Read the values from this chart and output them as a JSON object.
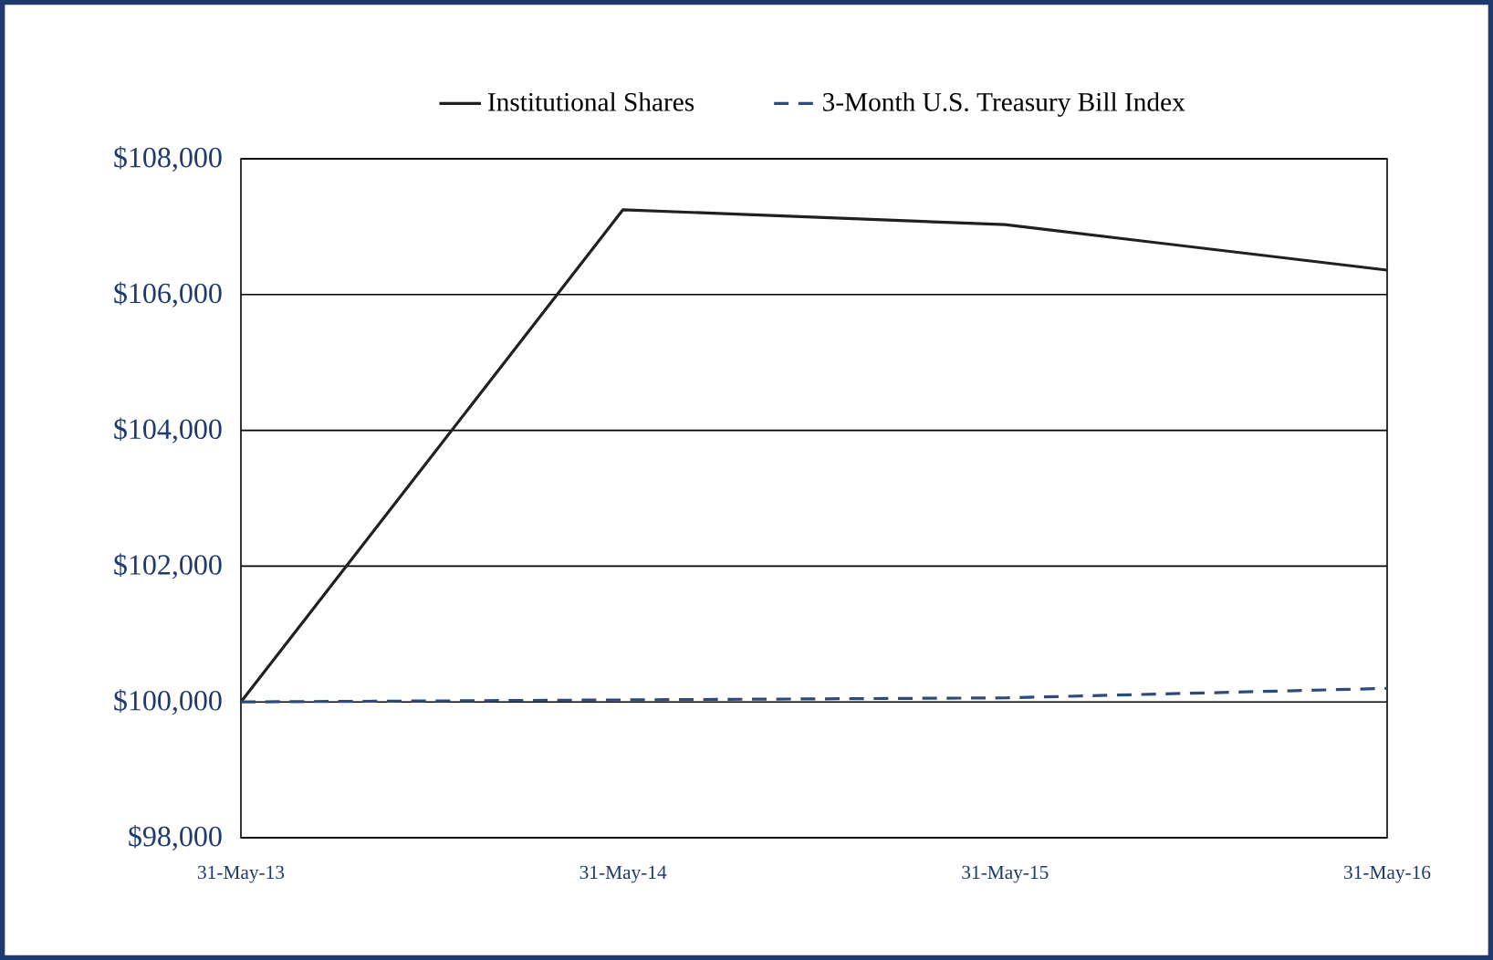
{
  "chart_data": {
    "type": "line",
    "categories": [
      "31-May-13",
      "31-May-14",
      "31-May-15",
      "31-May-16"
    ],
    "series": [
      {
        "name": "Institutional Shares",
        "color": "#231f20",
        "line_style": "solid",
        "values": [
          100000,
          107250,
          107030,
          106360
        ]
      },
      {
        "name": "3-Month U.S. Treasury Bill Index",
        "color": "#2e4a7d",
        "line_style": "dashed",
        "values": [
          100000,
          100030,
          100060,
          100200
        ]
      }
    ],
    "ylim": [
      98000,
      108000
    ],
    "yticks": [
      {
        "value": 98000,
        "label": "$98,000"
      },
      {
        "value": 100000,
        "label": "$100,000"
      },
      {
        "value": 102000,
        "label": "$102,000"
      },
      {
        "value": 104000,
        "label": "$104,000"
      },
      {
        "value": 106000,
        "label": "$106,000"
      },
      {
        "value": 108000,
        "label": "$108,000"
      }
    ],
    "grid": "y",
    "legend": "top",
    "marker": "none"
  }
}
